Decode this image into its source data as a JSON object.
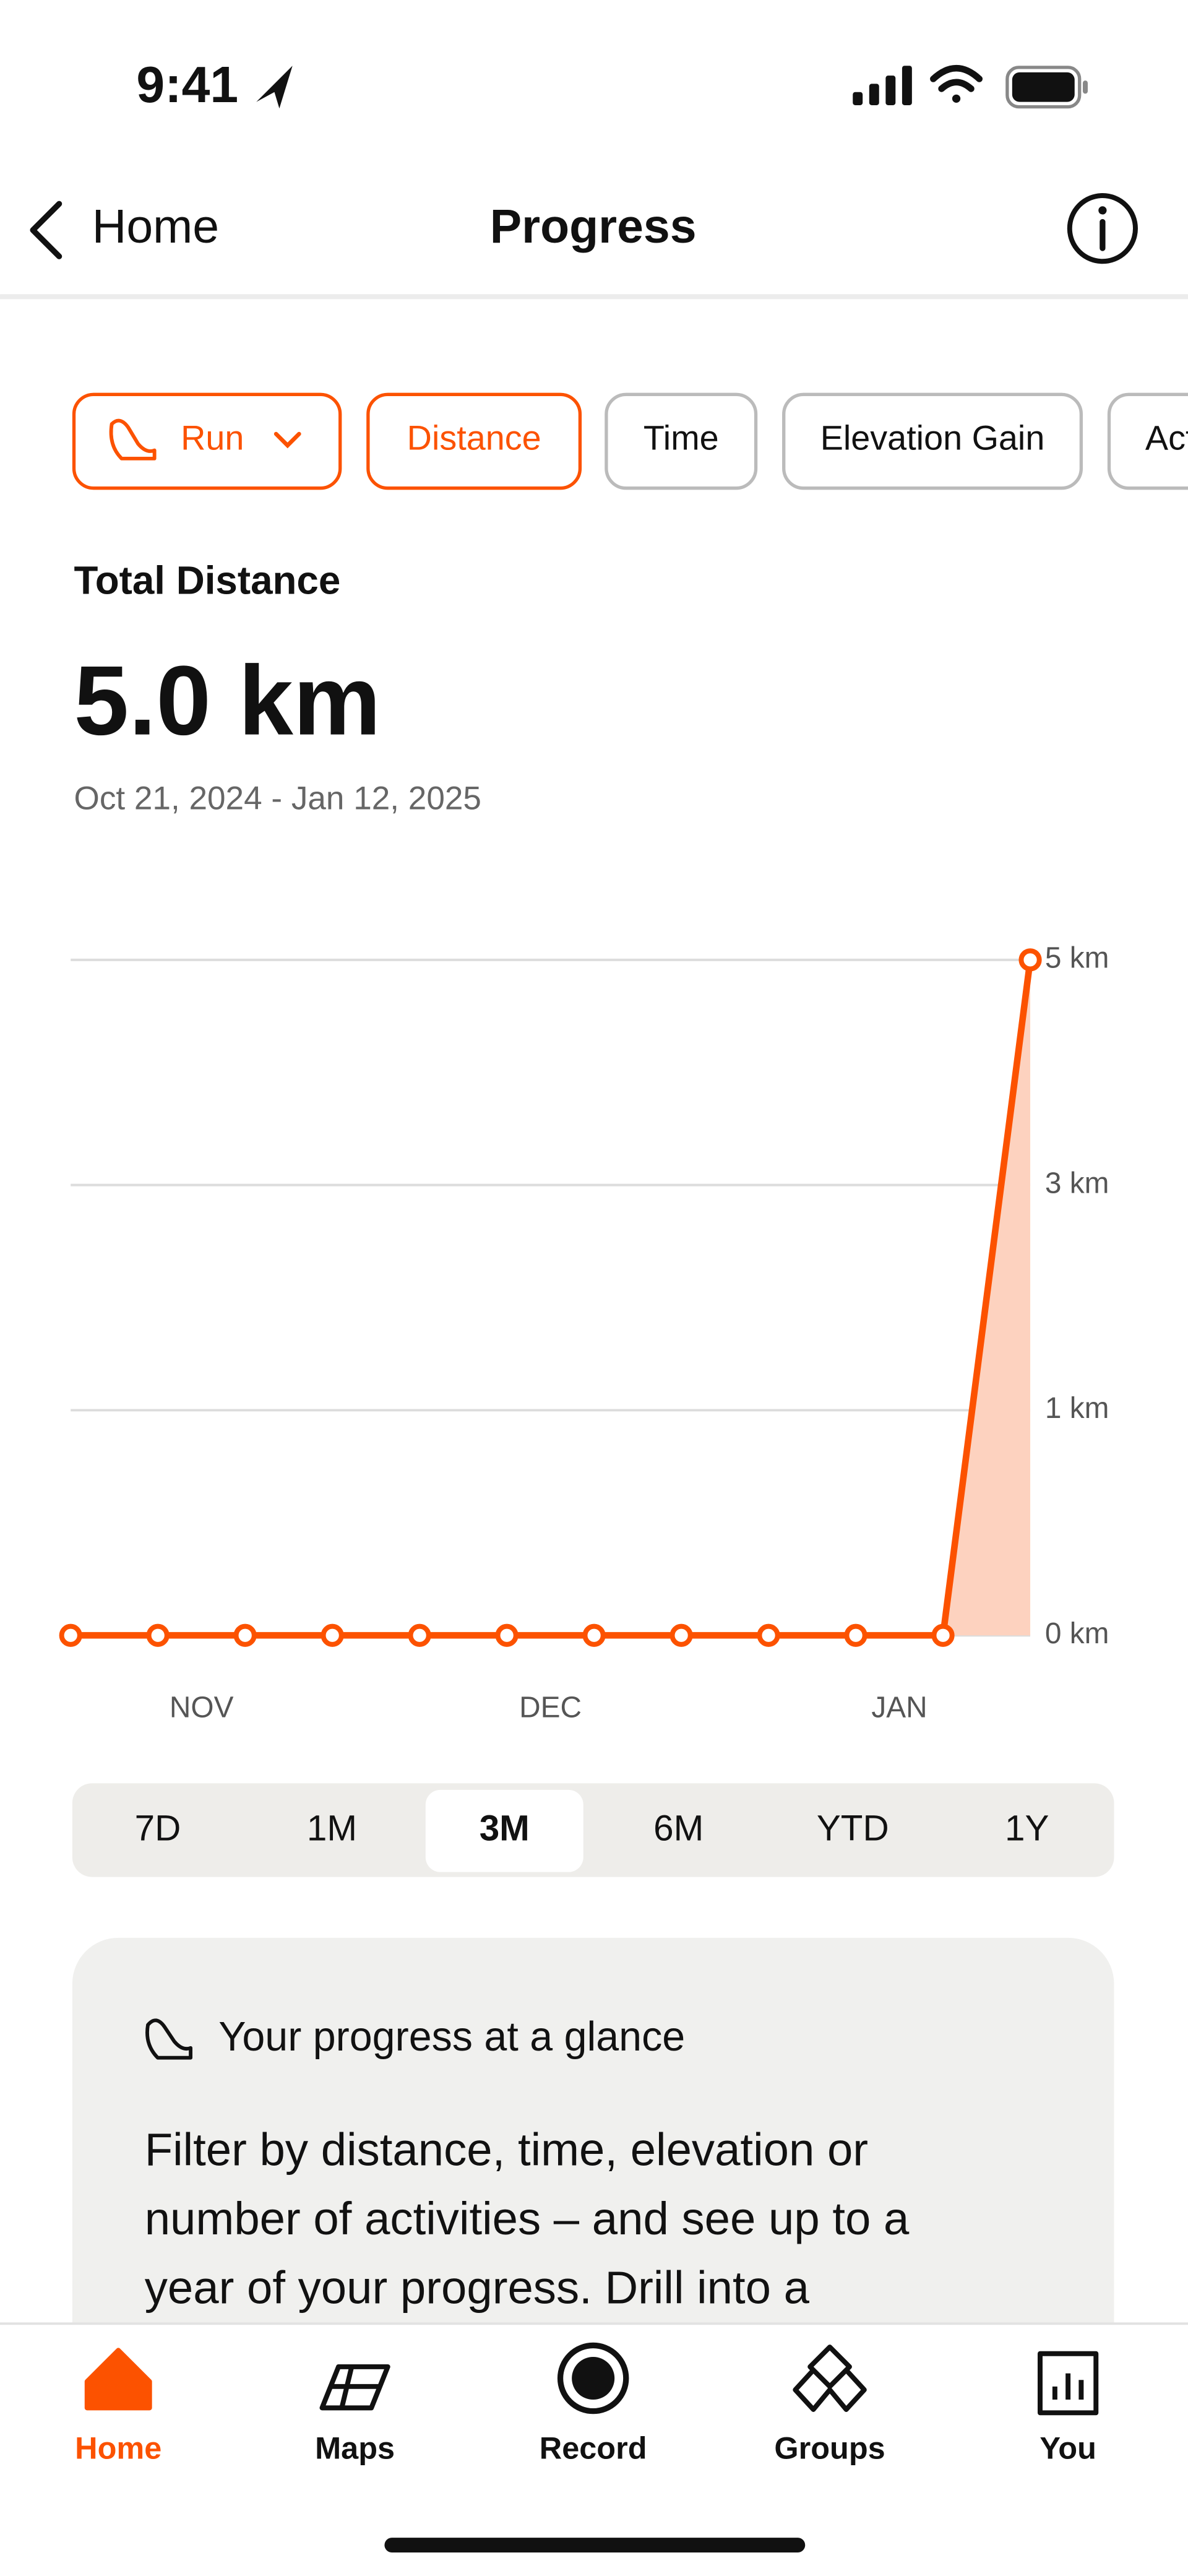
{
  "status_bar": {
    "time": "9:41"
  },
  "nav": {
    "back": "Home",
    "title": "Progress"
  },
  "filters": [
    "Run",
    "Distance",
    "Time",
    "Elevation Gain",
    "Activities"
  ],
  "summary": {
    "label": "Total Distance",
    "value": "5.0 km",
    "range": "Oct 21, 2024 - Jan 12, 2025"
  },
  "chart_data": {
    "type": "line",
    "categories": [
      null,
      "NOV",
      null,
      null,
      null,
      "DEC",
      null,
      null,
      null,
      "JAN",
      null,
      null
    ],
    "values": [
      0,
      0,
      0,
      0,
      0,
      0,
      0,
      0,
      0,
      0,
      0,
      5
    ],
    "color": "#fc5200",
    "area_color": "#fdd2bf",
    "ylim": [
      0,
      5
    ],
    "yticks": [
      {
        "value": 0,
        "label": "0 km"
      },
      {
        "value": 1,
        "label": "1 km"
      },
      {
        "value": 3,
        "label": "3 km"
      },
      {
        "value": 5,
        "label": "5 km"
      }
    ],
    "grid": true
  },
  "time_ranges": [
    "7D",
    "1M",
    "3M",
    "6M",
    "YTD",
    "1Y"
  ],
  "selected_range": 2,
  "card": {
    "title": "Your progress at a glance",
    "body": [
      "Filter by distance, time, elevation or",
      "number of activities – and see up to a",
      "year of your progress. Drill into a"
    ]
  },
  "tabs": [
    "Home",
    "Maps",
    "Record",
    "Groups",
    "You"
  ],
  "active_tab": 0
}
